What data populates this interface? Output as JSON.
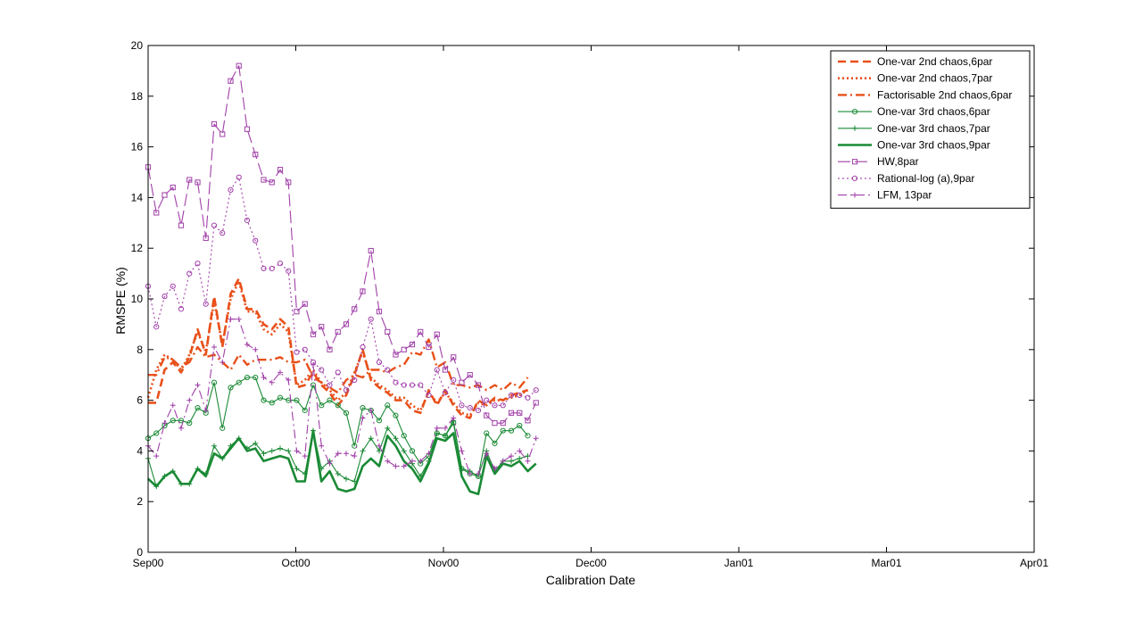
{
  "chart_data": {
    "type": "line",
    "title": "",
    "xlabel": "Calibration Date",
    "ylabel": "RMSPE (%)",
    "xlim": [
      0,
      54
    ],
    "ylim": [
      0,
      20
    ],
    "yticks": [
      0,
      2,
      4,
      6,
      8,
      10,
      12,
      14,
      16,
      18,
      20
    ],
    "xticks": [
      {
        "label": "Sep00",
        "x": 0
      },
      {
        "label": "Oct00",
        "x": 9
      },
      {
        "label": "Nov00",
        "x": 18
      },
      {
        "label": "Dec00",
        "x": 27
      },
      {
        "label": "Jan01",
        "x": 36
      },
      {
        "label": "Mar01",
        "x": 45
      },
      {
        "label": "Apr01",
        "x": 54
      }
    ],
    "legend_position": "top-right",
    "series": [
      {
        "name": "One-var 2nd chaos,6par",
        "color": "#e8501a",
        "style": "dashed",
        "marker": "none",
        "width": 2.6,
        "values": [
          5.9,
          5.9,
          7.2,
          7.5,
          7.1,
          7.7,
          8.8,
          7.8,
          10.1,
          8.1,
          10.2,
          10.8,
          9.6,
          9.6,
          9.0,
          8.8,
          9.2,
          8.9,
          6.5,
          6.6,
          7.1,
          6.6,
          6.3,
          5.8,
          6.2,
          7.0,
          8.0,
          6.8,
          6.5,
          6.3,
          6.0,
          6.0,
          5.6,
          5.5,
          6.4,
          5.8,
          6.4,
          5.8,
          5.4,
          5.3,
          6.0,
          5.8,
          6.1,
          6.0,
          6.2,
          6.3,
          6.4
        ]
      },
      {
        "name": "One-var 2nd chaos,7par",
        "color": "#e8501a",
        "style": "dotted",
        "marker": "none",
        "width": 2.6,
        "values": [
          6.1,
          7.2,
          7.8,
          7.6,
          7.2,
          7.8,
          8.7,
          7.9,
          9.9,
          8.2,
          10.0,
          10.7,
          9.5,
          9.5,
          8.8,
          8.6,
          9.0,
          8.7,
          6.6,
          6.8,
          7.2,
          6.7,
          6.4,
          6.0,
          6.3,
          7.1,
          7.9,
          6.9,
          6.6,
          6.4,
          6.1,
          6.1,
          5.8,
          5.6,
          6.3,
          5.9,
          6.3,
          5.9,
          5.5,
          5.4,
          5.9,
          5.8,
          6.0,
          6.0,
          6.1,
          6.2,
          6.4
        ]
      },
      {
        "name": "Factorisable 2nd chaos,6par",
        "color": "#e8501a",
        "style": "dashdot",
        "marker": "none",
        "width": 2.4,
        "values": [
          7.0,
          7.0,
          7.7,
          7.6,
          7.3,
          7.5,
          8.1,
          7.7,
          7.8,
          7.5,
          7.2,
          7.8,
          7.4,
          7.6,
          7.6,
          7.6,
          7.7,
          7.5,
          7.5,
          7.6,
          6.9,
          6.7,
          6.5,
          6.3,
          6.8,
          7.0,
          6.9,
          7.2,
          7.2,
          7.1,
          7.3,
          7.4,
          7.9,
          7.8,
          8.4,
          7.3,
          7.5,
          6.6,
          6.6,
          6.5,
          6.6,
          6.4,
          6.6,
          6.4,
          6.7,
          6.5,
          6.9
        ]
      },
      {
        "name": "One-var 3rd chaos,6par",
        "color": "#1a8a35",
        "style": "solid",
        "marker": "circle",
        "width": 1.1,
        "values": [
          4.5,
          4.7,
          5.0,
          5.2,
          5.2,
          5.1,
          5.7,
          5.5,
          6.7,
          4.9,
          6.5,
          6.7,
          6.9,
          6.9,
          6.0,
          5.9,
          6.1,
          6.0,
          6.0,
          5.6,
          6.6,
          5.8,
          6.0,
          5.8,
          5.5,
          4.2,
          5.7,
          5.6,
          5.2,
          5.8,
          5.4,
          4.6,
          4.0,
          3.5,
          3.8,
          4.7,
          4.6,
          5.1,
          3.3,
          3.1,
          3.0,
          4.7,
          4.3,
          4.8,
          4.8,
          5.0,
          4.6
        ]
      },
      {
        "name": "One-var 3rd chaos,7par",
        "color": "#1a8a35",
        "style": "solid",
        "marker": "plus",
        "width": 1.1,
        "values": [
          3.7,
          2.6,
          3.0,
          3.2,
          2.7,
          2.7,
          3.3,
          3.1,
          4.2,
          3.7,
          4.2,
          4.5,
          4.1,
          4.3,
          3.9,
          4.0,
          4.1,
          4.0,
          3.3,
          3.1,
          4.8,
          3.3,
          3.6,
          3.1,
          2.9,
          2.8,
          4.0,
          4.5,
          4.0,
          4.9,
          4.5,
          4.0,
          3.5,
          3.0,
          3.6,
          4.7,
          4.6,
          5.2,
          3.3,
          3.2,
          3.0,
          4.0,
          3.2,
          3.6,
          3.6,
          3.7,
          3.8
        ]
      },
      {
        "name": "One-var 3rd chaos,9par",
        "color": "#1a8a35",
        "style": "solid",
        "marker": "none",
        "width": 2.6,
        "values": [
          2.9,
          2.6,
          3.0,
          3.2,
          2.7,
          2.7,
          3.3,
          3.0,
          3.9,
          3.7,
          4.1,
          4.5,
          4.0,
          4.1,
          3.6,
          3.7,
          3.8,
          3.7,
          2.8,
          2.8,
          4.8,
          2.8,
          3.2,
          2.5,
          2.4,
          2.5,
          3.4,
          3.7,
          3.4,
          4.6,
          4.2,
          3.6,
          3.3,
          2.8,
          3.5,
          4.5,
          4.4,
          4.7,
          3.0,
          2.4,
          2.3,
          3.8,
          3.1,
          3.5,
          3.4,
          3.6,
          3.2,
          3.5
        ]
      },
      {
        "name": "HW,8par",
        "color": "#a03fa8",
        "style": "longdash",
        "marker": "square",
        "width": 1.1,
        "values": [
          15.2,
          13.4,
          14.1,
          14.4,
          12.9,
          14.7,
          14.6,
          12.4,
          16.9,
          16.5,
          18.6,
          19.2,
          16.7,
          15.7,
          14.7,
          14.6,
          15.1,
          14.6,
          9.5,
          9.8,
          8.6,
          8.9,
          8.0,
          8.7,
          9.0,
          9.6,
          10.3,
          11.9,
          9.5,
          8.7,
          7.8,
          8.0,
          8.2,
          8.7,
          8.1,
          8.6,
          7.2,
          7.7,
          6.7,
          7.0,
          6.6,
          5.4,
          5.1,
          5.1,
          5.5,
          5.5,
          5.2,
          5.9
        ]
      },
      {
        "name": "Rational-log (a),9par",
        "color": "#a03fa8",
        "style": "dotted",
        "marker": "circle",
        "width": 1.1,
        "values": [
          10.5,
          8.9,
          10.1,
          10.5,
          9.6,
          11.0,
          11.4,
          9.8,
          12.9,
          12.6,
          14.3,
          14.8,
          13.1,
          12.3,
          11.2,
          11.2,
          11.4,
          11.1,
          7.9,
          8.0,
          7.5,
          7.2,
          6.6,
          7.1,
          6.4,
          6.8,
          8.1,
          9.2,
          7.5,
          7.2,
          6.7,
          6.6,
          6.6,
          6.6,
          6.2,
          7.2,
          6.3,
          6.8,
          5.8,
          5.7,
          5.6,
          6.0,
          5.8,
          5.8,
          6.2,
          6.2,
          6.1,
          6.4
        ]
      },
      {
        "name": "LFM, 13par",
        "color": "#a03fa8",
        "style": "dashdot",
        "marker": "plus",
        "width": 1.1,
        "values": [
          4.2,
          3.8,
          5.1,
          5.8,
          4.9,
          6.0,
          6.6,
          5.6,
          8.1,
          7.5,
          9.2,
          9.2,
          8.2,
          8.0,
          6.9,
          6.7,
          7.1,
          6.8,
          4.0,
          3.8,
          7.4,
          4.2,
          3.5,
          3.9,
          3.9,
          3.8,
          5.3,
          5.6,
          4.2,
          3.6,
          3.4,
          3.4,
          3.6,
          3.6,
          3.9,
          4.9,
          4.9,
          5.3,
          4.0,
          3.1,
          3.1,
          3.9,
          3.3,
          3.6,
          3.8,
          4.0,
          3.6,
          4.5
        ]
      }
    ]
  }
}
